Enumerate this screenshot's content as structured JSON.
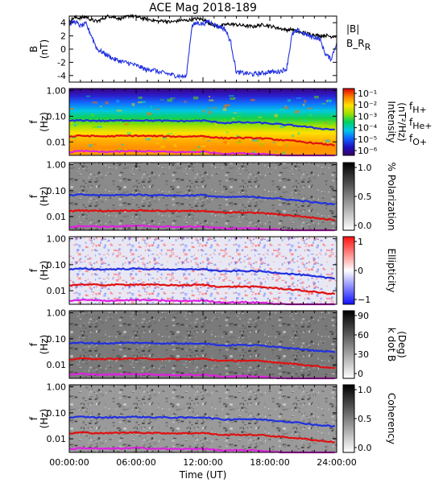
{
  "chart_data": {
    "type": "multi-panel",
    "title": "ACE Mag 2018-189",
    "xlabel": "Time (UT)",
    "x_ticks": [
      "00:00:00",
      "06:00:00",
      "12:00:00",
      "18:00:00",
      "24:00:00"
    ],
    "xlim": [
      0,
      24
    ],
    "panels": [
      {
        "id": "field",
        "type": "line",
        "ylabel_lines": [
          "B",
          "(nT)"
        ],
        "ylim": [
          -5,
          5
        ],
        "y_ticks": [
          "4",
          "2",
          "0",
          "-2",
          "-4"
        ],
        "y_tick_values": [
          4,
          2,
          0,
          -2,
          -4
        ],
        "legend": [
          "|B|",
          "B_R"
        ],
        "series": [
          {
            "name": "|B|",
            "color": "#000000",
            "x": [
              0,
              0.5,
              1,
              1.5,
              2,
              2.5,
              3,
              3.5,
              4,
              4.5,
              5,
              5.5,
              6,
              6.5,
              7,
              7.5,
              8,
              8.5,
              9,
              9.5,
              10,
              10.5,
              11,
              11.5,
              12,
              12.5,
              13,
              13.5,
              14,
              14.5,
              15,
              15.5,
              16,
              16.5,
              17,
              17.5,
              18,
              18.5,
              19,
              19.5,
              20,
              20.5,
              21,
              21.5,
              22,
              22.5,
              23,
              23.5,
              24
            ],
            "values": [
              4.3,
              4.8,
              4.7,
              4.9,
              4.4,
              4.2,
              4.6,
              5.0,
              4.9,
              4.6,
              4.8,
              5.1,
              4.9,
              4.7,
              4.5,
              4.4,
              4.2,
              4.3,
              4.1,
              4.2,
              4.4,
              4.3,
              4.5,
              4.6,
              4.5,
              4.0,
              3.6,
              3.4,
              3.7,
              3.8,
              3.7,
              3.6,
              3.5,
              3.4,
              3.6,
              3.7,
              3.5,
              3.3,
              3.1,
              2.9,
              3.0,
              2.6,
              2.5,
              2.3,
              2.2,
              2.0,
              2.1,
              1.9,
              2.0
            ]
          },
          {
            "name": "B_R",
            "color": "#2030e0",
            "x": [
              0,
              0.5,
              1,
              1.5,
              2,
              2.5,
              3,
              3.5,
              4,
              4.5,
              5,
              5.5,
              6,
              6.5,
              7,
              7.5,
              8,
              8.5,
              9,
              9.5,
              10,
              10.5,
              11,
              11.5,
              12,
              12.5,
              13,
              13.5,
              14,
              14.5,
              15,
              15.5,
              16,
              16.5,
              17,
              17.5,
              18,
              18.5,
              19,
              19.5,
              20,
              20.5,
              21,
              21.5,
              22,
              22.5,
              23,
              23.5,
              24
            ],
            "values": [
              3.8,
              4.2,
              3.5,
              3.8,
              2.0,
              0.0,
              -0.5,
              -1.0,
              -1.5,
              -1.8,
              -2.0,
              -2.2,
              -2.5,
              -2.8,
              -3.2,
              -3.0,
              -3.5,
              -3.6,
              -3.8,
              -4.0,
              -4.1,
              -4.2,
              3.5,
              4.0,
              3.8,
              4.2,
              3.7,
              3.4,
              3.0,
              1.0,
              -3.5,
              -3.6,
              -3.7,
              -3.8,
              -3.7,
              -3.6,
              -3.4,
              -3.5,
              -3.3,
              -3.0,
              2.2,
              2.8,
              2.4,
              2.0,
              1.8,
              1.5,
              -0.8,
              -1.5,
              1.0
            ]
          }
        ]
      },
      {
        "id": "intensity",
        "type": "heatmap",
        "ylabel_lines": [
          "f",
          "(Hz)"
        ],
        "colorbar_label_lines": [
          "Intensity",
          "(nT²/Hz)"
        ],
        "colorbar_ticks": [
          "10⁻¹",
          "10⁻²",
          "10⁻³",
          "10⁻⁴",
          "10⁻⁵",
          "10⁻⁶"
        ],
        "colormap": "rainbow"
      },
      {
        "id": "polarization",
        "type": "heatmap",
        "ylabel_lines": [
          "f",
          "(Hz)"
        ],
        "colorbar_label_lines": [
          "% Polarization"
        ],
        "colorbar_ticks": [
          "1.0",
          "0.5",
          "0.0"
        ],
        "colormap": "grayscale"
      },
      {
        "id": "ellipticity",
        "type": "heatmap",
        "ylabel_lines": [
          "f",
          "(Hz)"
        ],
        "colorbar_label_lines": [
          "Ellipticity"
        ],
        "colorbar_ticks": [
          "1",
          "0",
          "−1"
        ],
        "colormap": "blue-white-red"
      },
      {
        "id": "kdotb",
        "type": "heatmap",
        "ylabel_lines": [
          "f",
          "(Hz)"
        ],
        "colorbar_label_lines": [
          "k dot B",
          "(Deg)"
        ],
        "colorbar_ticks": [
          "90",
          "60",
          "30",
          "0"
        ],
        "colormap": "grayscale"
      },
      {
        "id": "coherency",
        "type": "heatmap",
        "ylabel_lines": [
          "f",
          "(Hz)"
        ],
        "colorbar_label_lines": [
          "Coherency"
        ],
        "colorbar_ticks": [
          "1.0",
          "0.5",
          "0.0"
        ],
        "colormap": "grayscale"
      }
    ],
    "freq_axis": {
      "scale": "log",
      "ylim": [
        0.003,
        1.2
      ],
      "y_ticks": [
        "1.00",
        "0.10",
        "0.01"
      ],
      "y_tick_values": [
        1.0,
        0.1,
        0.01
      ]
    },
    "gyrofrequencies": {
      "legend_lines": [
        {
          "base": "f",
          "sub": "H+",
          "color": "#2030e0"
        },
        {
          "base": "f",
          "sub": "He+",
          "color": "#e01010"
        },
        {
          "base": "f",
          "sub": "O+",
          "color": "#e020e0"
        }
      ],
      "x": [
        0,
        1,
        2,
        3,
        4,
        5,
        6,
        7,
        8,
        9,
        10,
        11,
        12,
        13,
        14,
        15,
        16,
        17,
        18,
        19,
        20,
        21,
        22,
        23,
        24
      ],
      "fH": [
        0.065,
        0.07,
        0.068,
        0.066,
        0.067,
        0.069,
        0.07,
        0.068,
        0.067,
        0.066,
        0.065,
        0.066,
        0.068,
        0.06,
        0.055,
        0.058,
        0.057,
        0.056,
        0.052,
        0.048,
        0.044,
        0.04,
        0.035,
        0.032,
        0.03
      ],
      "fHe": [
        0.016,
        0.0175,
        0.017,
        0.0165,
        0.0168,
        0.0172,
        0.0175,
        0.017,
        0.0168,
        0.0165,
        0.0162,
        0.0165,
        0.017,
        0.015,
        0.014,
        0.0145,
        0.0142,
        0.014,
        0.013,
        0.012,
        0.011,
        0.01,
        0.009,
        0.008,
        0.0075
      ],
      "fO": [
        0.004,
        0.0044,
        0.0043,
        0.0041,
        0.0042,
        0.0043,
        0.0044,
        0.0043,
        0.0042,
        0.0041,
        0.004,
        0.0041,
        0.0042,
        0.0038,
        0.0035,
        0.0036,
        0.0036,
        0.0035,
        0.0033,
        0.003,
        0.0028,
        0.0025,
        0.0023,
        0.002,
        0.0019
      ]
    }
  }
}
